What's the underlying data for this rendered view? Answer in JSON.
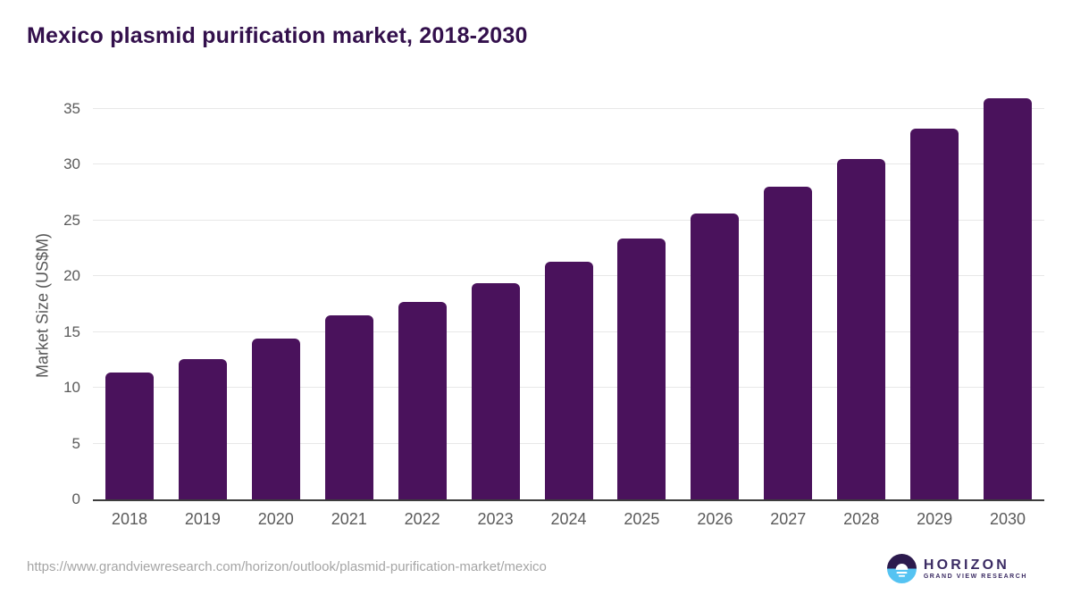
{
  "page": {
    "title": "Mexico plasmid purification market, 2018-2030",
    "source_url": "https://www.grandviewresearch.com/horizon/outlook/plasmid-purification-market/mexico"
  },
  "chart_data": {
    "type": "bar",
    "title": "Mexico plasmid purification market, 2018-2030",
    "categories": [
      "2018",
      "2019",
      "2020",
      "2021",
      "2022",
      "2023",
      "2024",
      "2025",
      "2026",
      "2027",
      "2028",
      "2029",
      "2030"
    ],
    "values": [
      11.4,
      12.6,
      14.4,
      16.5,
      17.7,
      19.4,
      21.3,
      23.4,
      25.6,
      28.0,
      30.5,
      33.2,
      36.0
    ],
    "xlabel": "",
    "ylabel": "Market Size (US$M)",
    "ylim": [
      0,
      35
    ],
    "yticks": [
      0,
      5,
      10,
      15,
      20,
      25,
      30,
      35
    ],
    "grid": true,
    "legend": "none",
    "bar_color": "#4a125c"
  },
  "branding": {
    "logo_title": "HORIZON",
    "logo_subtitle": "GRAND VIEW RESEARCH",
    "logo_colors": {
      "circle_top": "#2c1a4d",
      "circle_bottom": "#55c3f2",
      "text": "#3b2b63"
    }
  },
  "colors": {
    "title_text": "#33104c",
    "bar": "#4a125c",
    "axis_text": "#5a5a5a",
    "gridline": "#e8e8e8",
    "axis_line": "#3d3d3d",
    "url_text": "#a5a5a5",
    "background": "#ffffff"
  }
}
